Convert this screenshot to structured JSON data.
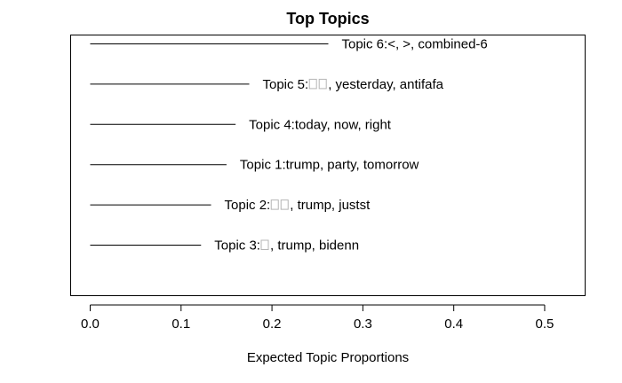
{
  "chart_data": {
    "type": "bar",
    "orientation": "horizontal",
    "title": "Top Topics",
    "xlabel": "Expected Topic Proportions",
    "ylabel": "",
    "xlim": [
      -0.021,
      0.545
    ],
    "xticks": [
      0.0,
      0.1,
      0.2,
      0.3,
      0.4,
      0.5
    ],
    "xtick_labels": [
      "0.0",
      "0.1",
      "0.2",
      "0.3",
      "0.4",
      "0.5"
    ],
    "grid": false,
    "categories": [
      {
        "label": "Topic 6: <, >, combined-6",
        "prefix": "Topic 6: ",
        "missing_glyphs": 0,
        "suffix": "<, >, combined-6",
        "value": 0.262
      },
      {
        "label": "Topic 5: □□, yesterday, antifafa",
        "prefix": "Topic 5: ",
        "missing_glyphs": 2,
        "suffix": ", yesterday, antifafa",
        "value": 0.175
      },
      {
        "label": "Topic 4: today, now, right",
        "prefix": "Topic 4: ",
        "missing_glyphs": 0,
        "suffix": "today, now, right",
        "value": 0.16
      },
      {
        "label": "Topic 1: trump, party, tomorrow",
        "prefix": "Topic 1: ",
        "missing_glyphs": 0,
        "suffix": "trump, party, tomorrow",
        "value": 0.15
      },
      {
        "label": "Topic 2: □□, trump, justst",
        "prefix": "Topic 2: ",
        "missing_glyphs": 2,
        "suffix": ", trump, justst",
        "value": 0.133
      },
      {
        "label": "Topic 3: □, trump, bidenn",
        "prefix": "Topic 3: ",
        "missing_glyphs": 1,
        "suffix": ", trump, bidenn",
        "value": 0.122
      }
    ]
  }
}
